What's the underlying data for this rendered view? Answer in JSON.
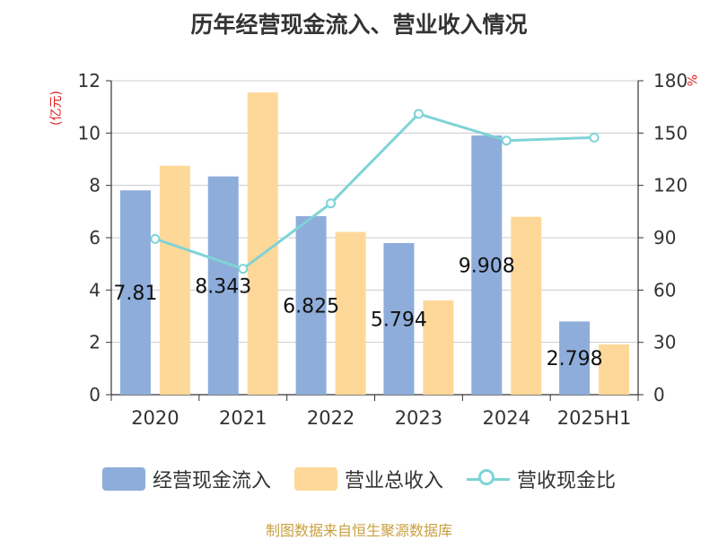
{
  "title": "历年经营现金流入、营业收入情况",
  "source": "制图数据来自恒生聚源数据库",
  "colors": {
    "cash": "#8eaddb",
    "revenue": "#fdd898",
    "ratio": "#7fd3d6",
    "unit": "#e02020",
    "source": "#c8a040"
  },
  "chart_data": {
    "type": "bar",
    "title": "历年经营现金流入、营业收入情况",
    "categories": [
      "2020",
      "2021",
      "2022",
      "2023",
      "2024",
      "2025H1"
    ],
    "y_left": {
      "unit_label": "(亿元)",
      "range": [
        0,
        12
      ],
      "ticks": [
        "0",
        "2",
        "4",
        "6",
        "8",
        "10",
        "12"
      ]
    },
    "y_right": {
      "unit_label": "%",
      "range": [
        0,
        180
      ],
      "ticks": [
        "0",
        "30",
        "60",
        "90",
        "120",
        "150",
        "180"
      ]
    },
    "grid": true,
    "legend_position": "bottom",
    "series": [
      {
        "name": "经营现金流入",
        "type": "bar",
        "axis": "left",
        "values": [
          7.81,
          8.343,
          6.825,
          5.794,
          9.908,
          2.798
        ],
        "labels": [
          "7.81",
          "8.343",
          "6.825",
          "5.794",
          "9.908",
          "2.798"
        ]
      },
      {
        "name": "营业总收入",
        "type": "bar",
        "axis": "left",
        "values": [
          8.75,
          11.55,
          6.22,
          3.6,
          6.8,
          1.92
        ]
      },
      {
        "name": "营收现金比",
        "type": "line",
        "axis": "right",
        "values": [
          89.3,
          72.2,
          109.7,
          161.0,
          145.7,
          147.4
        ]
      }
    ]
  }
}
